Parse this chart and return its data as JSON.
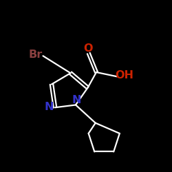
{
  "background_color": "#000000",
  "bond_color": "#ffffff",
  "br_color": "#8B4040",
  "br_label": "Br",
  "o_color": "#cc2200",
  "o_label": "O",
  "oh_color": "#cc2200",
  "oh_label": "OH",
  "n_color": "#3333cc",
  "n1_label": "N",
  "n2_label": "N",
  "figsize": [
    2.5,
    2.5
  ],
  "dpi": 100
}
